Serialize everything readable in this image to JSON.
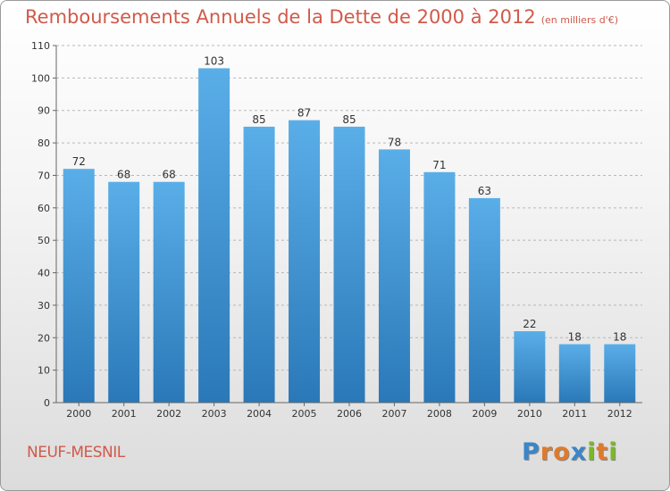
{
  "chart_data": {
    "type": "bar",
    "title": "Remboursements Annuels de la Dette de 2000 à 2012",
    "subtitle": "(en milliers d'€)",
    "categories": [
      "2000",
      "2001",
      "2002",
      "2003",
      "2004",
      "2005",
      "2006",
      "2007",
      "2008",
      "2009",
      "2010",
      "2011",
      "2012"
    ],
    "values": [
      72,
      68,
      68,
      103,
      85,
      87,
      85,
      78,
      71,
      63,
      22,
      18,
      18
    ],
    "yticks": [
      0,
      10,
      20,
      30,
      40,
      50,
      60,
      70,
      80,
      90,
      100,
      110
    ],
    "ylim": [
      0,
      110
    ],
    "xlabel": "",
    "ylabel": "",
    "grid": true,
    "colors": {
      "bar_top": "#5aaee8",
      "bar_bottom": "#2a78b8",
      "grid": "#b8b8b8"
    }
  },
  "footer": {
    "commune": "NEUF-MESNIL",
    "logo": {
      "letters": [
        {
          "char": "P",
          "color": "#3a86c8"
        },
        {
          "char": "r",
          "color": "#e07a2a"
        },
        {
          "char": "o",
          "color": "#e07a2a"
        },
        {
          "char": "x",
          "color": "#3a86c8"
        },
        {
          "char": "i",
          "color": "#7ab82a"
        },
        {
          "char": "t",
          "color": "#e07a2a"
        },
        {
          "char": "i",
          "color": "#7ab82a"
        }
      ]
    }
  }
}
